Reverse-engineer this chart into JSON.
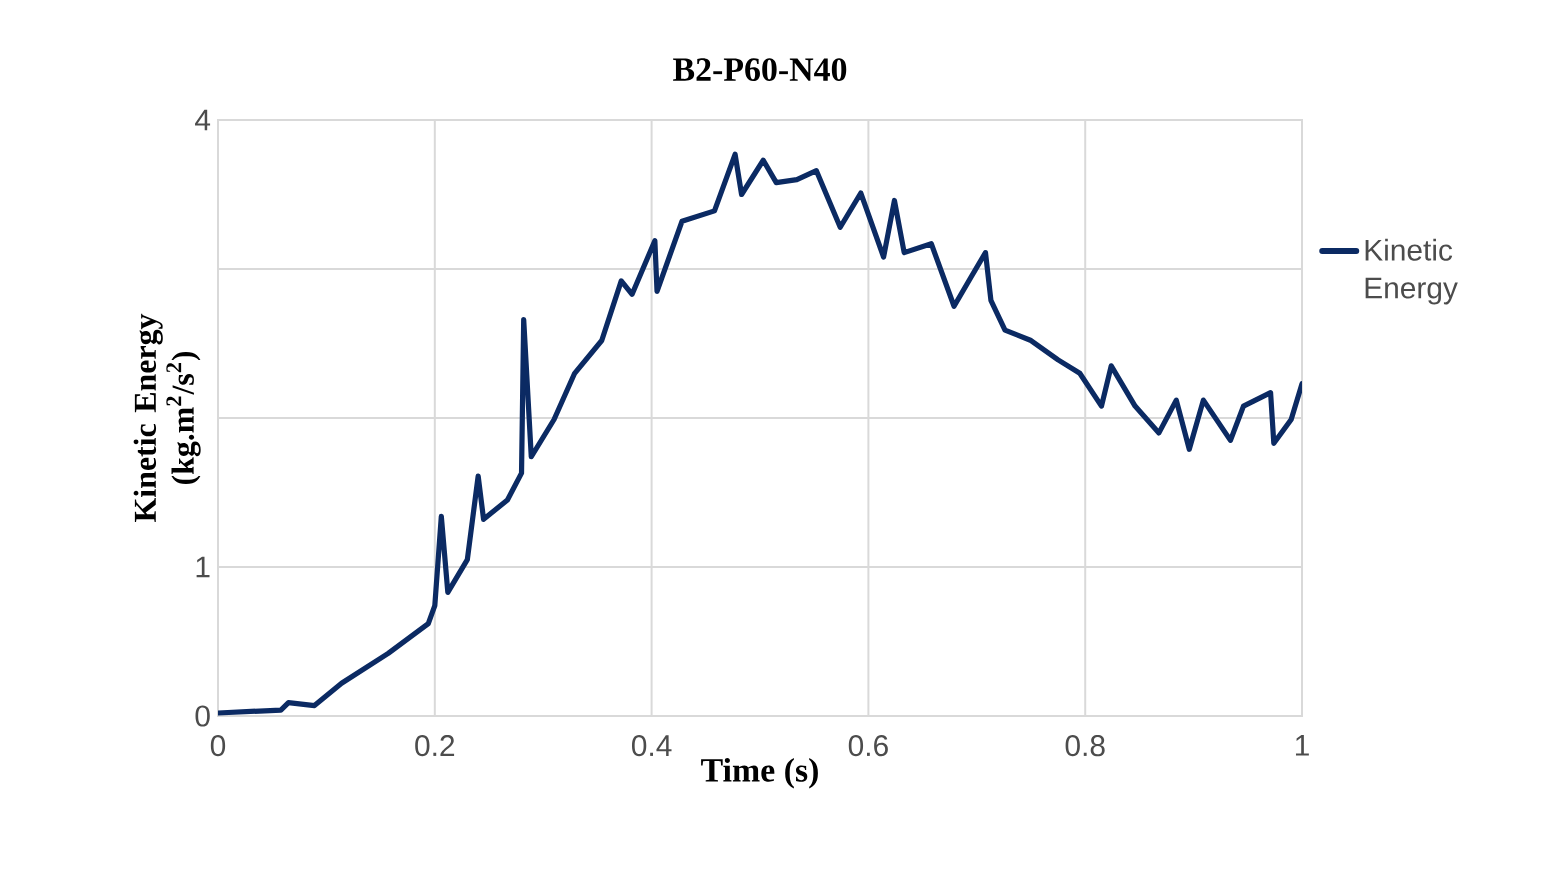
{
  "chart_data": {
    "type": "line",
    "title": "B2-P60-N40",
    "xlabel": "Time (s)",
    "ylabel": "Kinetic Energy (kg.m$^{2}$/s$^{2}$)",
    "xlim": [
      0,
      1
    ],
    "xticks": [
      0,
      0.2,
      0.4,
      0.6,
      0.8,
      1
    ],
    "ylim": [
      0,
      4
    ],
    "yticks": [
      0,
      1,
      {
        "value": 2,
        "label": null
      },
      {
        "value": 3,
        "label": null
      },
      4
    ],
    "grid": true,
    "legend": "right",
    "marker": "none",
    "line_style": "solid",
    "series": [
      {
        "name": "Kinetic Energy",
        "color": "#0b2a63",
        "x": [
          0,
          0.058,
          0.065,
          0.089,
          0.114,
          0.157,
          0.194,
          0.2,
          0.206,
          0.212,
          0.23,
          0.24,
          0.245,
          0.267,
          0.28,
          0.282,
          0.289,
          0.31,
          0.329,
          0.354,
          0.372,
          0.382,
          0.403,
          0.405,
          0.428,
          0.458,
          0.477,
          0.483,
          0.503,
          0.515,
          0.534,
          0.552,
          0.574,
          0.593,
          0.614,
          0.624,
          0.633,
          0.658,
          0.679,
          0.695,
          0.708,
          0.713,
          0.726,
          0.75,
          0.775,
          0.795,
          0.815,
          0.824,
          0.846,
          0.868,
          0.884,
          0.896,
          0.909,
          0.934,
          0.946,
          0.971,
          0.974,
          0.99,
          1.0
        ],
        "values": [
          0.02,
          0.04,
          0.09,
          0.07,
          0.22,
          0.42,
          0.62,
          0.74,
          1.34,
          0.83,
          1.05,
          1.61,
          1.32,
          1.45,
          1.63,
          2.66,
          1.74,
          1.99,
          2.3,
          2.52,
          2.92,
          2.83,
          3.19,
          2.85,
          3.32,
          3.39,
          3.77,
          3.5,
          3.73,
          3.58,
          3.6,
          3.66,
          3.28,
          3.51,
          3.08,
          3.46,
          3.11,
          3.17,
          2.75,
          2.95,
          3.11,
          2.79,
          2.59,
          2.52,
          2.39,
          2.3,
          2.08,
          2.35,
          2.08,
          1.9,
          2.12,
          1.79,
          2.12,
          1.85,
          2.08,
          2.17,
          1.83,
          1.99,
          2.23
        ]
      }
    ]
  }
}
